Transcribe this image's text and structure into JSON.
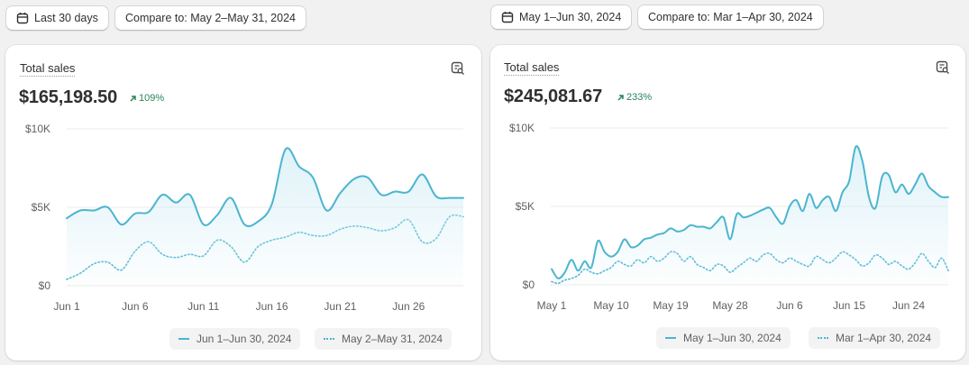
{
  "filters": {
    "left": {
      "date_range_label": "Last 30 days",
      "compare_label": "Compare to: May 2–May 31, 2024"
    },
    "right": {
      "date_range_label": "May 1–Jun 30, 2024",
      "compare_label": "Compare to: Mar 1–Apr 30, 2024"
    }
  },
  "icons": {
    "calendar": "calendar-icon",
    "explore": "chart-explore-icon",
    "trend_up": "arrow-up-right-icon"
  },
  "colors": {
    "series_current": "#4bb5cf",
    "series_previous": "#4bb5cf",
    "change_positive": "#29845a",
    "area_fill": "#d4eef6"
  },
  "cards": [
    {
      "title": "Total sales",
      "value": "$165,198.50",
      "change": "109%",
      "legend": [
        "Jun 1–Jun 30, 2024",
        "May 2–May 31, 2024"
      ],
      "chart_data": {
        "type": "line",
        "title": "",
        "y_ticks": [
          "$10K",
          "$5K",
          "$0"
        ],
        "ylim": [
          0,
          10000
        ],
        "x_labels": [
          "Jun 1",
          "Jun 6",
          "Jun 11",
          "Jun 16",
          "Jun 21",
          "Jun 26"
        ],
        "x_label_index": [
          0,
          5,
          10,
          15,
          20,
          25
        ],
        "grid": true,
        "series": [
          {
            "name": "Jun 1–Jun 30, 2024",
            "style": "solid",
            "values": [
              4300,
              4800,
              4800,
              5000,
              3900,
              4600,
              4700,
              5800,
              5300,
              5800,
              3900,
              4500,
              5600,
              3900,
              4100,
              5200,
              8700,
              7600,
              6900,
              4800,
              5900,
              6800,
              6900,
              5800,
              6000,
              6000,
              7100,
              5700,
              5600,
              5600
            ]
          },
          {
            "name": "May 2–May 31, 2024",
            "style": "dotted",
            "values": [
              400,
              800,
              1400,
              1500,
              1000,
              2200,
              2800,
              2000,
              1800,
              2000,
              1900,
              2900,
              2500,
              1500,
              2500,
              2900,
              3100,
              3400,
              3200,
              3200,
              3600,
              3800,
              3700,
              3500,
              3700,
              4200,
              2800,
              3000,
              4400,
              4400
            ]
          }
        ]
      }
    },
    {
      "title": "Total sales",
      "value": "$245,081.67",
      "change": "233%",
      "legend": [
        "May 1–Jun 30, 2024",
        "Mar 1–Apr 30, 2024"
      ],
      "chart_data": {
        "type": "line",
        "title": "",
        "y_ticks": [
          "$10K",
          "$5K",
          "$0"
        ],
        "ylim": [
          0,
          10000
        ],
        "x_labels": [
          "May 1",
          "May 10",
          "May 19",
          "May 28",
          "Jun 6",
          "Jun 15",
          "Jun 24"
        ],
        "x_label_index": [
          0,
          9,
          18,
          27,
          36,
          45,
          54
        ],
        "grid": true,
        "series": [
          {
            "name": "May 1–Jun 30, 2024",
            "style": "solid",
            "values": [
              1000,
              400,
              800,
              1600,
              900,
              1500,
              1100,
              2800,
              2100,
              1800,
              2100,
              2900,
              2400,
              2500,
              2900,
              3000,
              3200,
              3300,
              3600,
              3400,
              3500,
              3800,
              3700,
              3700,
              3600,
              4000,
              4300,
              2900,
              4500,
              4300,
              4400,
              4600,
              4800,
              4900,
              4300,
              3900,
              5000,
              5400,
              4700,
              5800,
              4900,
              5400,
              5600,
              4700,
              5900,
              6600,
              8800,
              7900,
              5600,
              4900,
              6900,
              7000,
              5900,
              6400,
              5800,
              6400,
              7100,
              6300,
              5900,
              5600,
              5600
            ]
          },
          {
            "name": "Mar 1–Apr 30, 2024",
            "style": "dotted",
            "values": [
              200,
              100,
              300,
              400,
              600,
              1000,
              800,
              700,
              900,
              1100,
              1500,
              1300,
              1200,
              1600,
              1400,
              1800,
              1500,
              1700,
              2100,
              2000,
              1500,
              1800,
              1300,
              1100,
              900,
              1300,
              1200,
              800,
              1100,
              1400,
              1700,
              1500,
              1900,
              2000,
              1600,
              1400,
              1700,
              1500,
              1300,
              1200,
              1800,
              1600,
              1400,
              1700,
              2100,
              1900,
              1600,
              1200,
              1400,
              1900,
              1700,
              1300,
              1500,
              1200,
              1000,
              1400,
              2000,
              1500,
              1100,
              1700,
              900
            ]
          }
        ]
      }
    }
  ]
}
